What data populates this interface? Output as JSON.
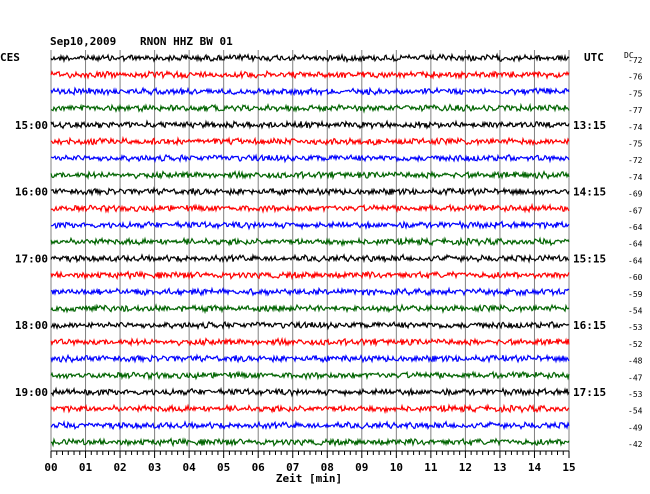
{
  "header": {
    "date": "Sep10,2009",
    "station": "RNON HHZ BW 01",
    "left_label": "CES",
    "right_label": "UTC",
    "dc_label": "DC"
  },
  "chart_data": {
    "type": "line",
    "title": "Sep10,2009   RNON HHZ BW 01",
    "xlabel": "Zeit [min]",
    "xlim": [
      0,
      15
    ],
    "x_ticks": [
      "00",
      "01",
      "02",
      "03",
      "04",
      "05",
      "06",
      "07",
      "08",
      "09",
      "10",
      "11",
      "12",
      "13",
      "14",
      "15"
    ],
    "trace_colors": [
      "#000000",
      "#ff0000",
      "#0000ff",
      "#006400"
    ],
    "left_time_labels": [
      {
        "trace": 4,
        "text": "15:00"
      },
      {
        "trace": 8,
        "text": "16:00"
      },
      {
        "trace": 12,
        "text": "17:00"
      },
      {
        "trace": 16,
        "text": "18:00"
      },
      {
        "trace": 20,
        "text": "19:00"
      }
    ],
    "right_time_labels": [
      {
        "trace": 4,
        "text": "13:15"
      },
      {
        "trace": 8,
        "text": "14:15"
      },
      {
        "trace": 12,
        "text": "15:15"
      },
      {
        "trace": 16,
        "text": "16:15"
      },
      {
        "trace": 20,
        "text": "17:15"
      }
    ],
    "dc_offsets": [
      "-72",
      "-76",
      "-75",
      "-77",
      "-74",
      "-75",
      "-72",
      "-74",
      "-69",
      "-67",
      "-64",
      "-64",
      "-64",
      "-60",
      "-59",
      "-54",
      "-53",
      "-52",
      "-48",
      "-47",
      "-53",
      "-54",
      "-49",
      "-42"
    ],
    "grid": true
  }
}
